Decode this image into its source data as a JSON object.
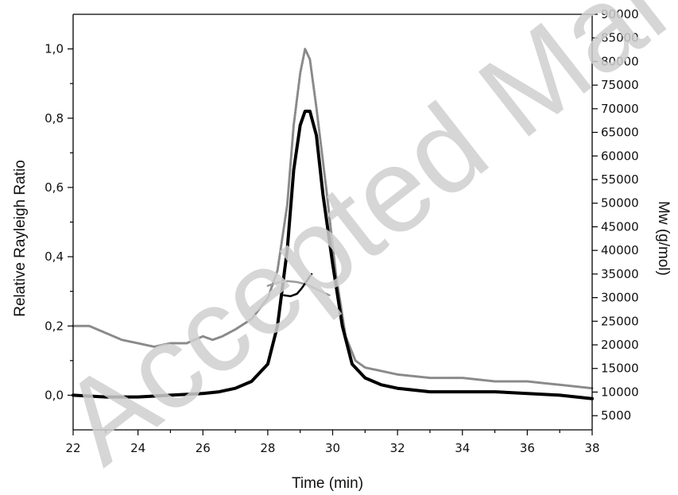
{
  "chart_data": {
    "type": "line",
    "title": "",
    "xlabel": "Time (min)",
    "ylabel": "Relative Rayleigh Ratio",
    "y2label": "Mw (g/mol)",
    "xlim": [
      22,
      38
    ],
    "ylim": [
      -0.1,
      1.1
    ],
    "y2lim": [
      2000,
      90000
    ],
    "x_ticks": [
      "22",
      "24",
      "26",
      "28",
      "30",
      "32",
      "34",
      "36",
      "38"
    ],
    "y_ticks": [
      "0,0",
      "0,2",
      "0,4",
      "0,6",
      "0,8",
      "1,0"
    ],
    "y2_ticks": [
      "5000",
      "10000",
      "15000",
      "20000",
      "25000",
      "30000",
      "35000",
      "40000",
      "45000",
      "50000",
      "55000",
      "60000",
      "65000",
      "70000",
      "75000",
      "80000",
      "85000",
      "90000"
    ],
    "grid": false,
    "legend": "none",
    "watermark": "Accepted Manuscript",
    "series": [
      {
        "axis": "left",
        "color": "#8a8a8a",
        "style": "dotted-line",
        "x": [
          22.0,
          22.5,
          23.0,
          23.5,
          24.0,
          24.5,
          25.0,
          25.5,
          26.0,
          26.3,
          26.6,
          27.0,
          27.5,
          28.0,
          28.3,
          28.6,
          28.8,
          29.0,
          29.15,
          29.3,
          29.5,
          29.8,
          30.1,
          30.4,
          30.7,
          31.0,
          31.5,
          32.0,
          33.0,
          34.0,
          35.0,
          36.0,
          37.0,
          38.0
        ],
        "y": [
          0.2,
          0.2,
          0.18,
          0.16,
          0.15,
          0.14,
          0.15,
          0.15,
          0.17,
          0.16,
          0.17,
          0.19,
          0.22,
          0.28,
          0.36,
          0.55,
          0.78,
          0.93,
          1.0,
          0.97,
          0.83,
          0.6,
          0.35,
          0.17,
          0.1,
          0.08,
          0.07,
          0.06,
          0.05,
          0.05,
          0.04,
          0.04,
          0.03,
          0.02
        ]
      },
      {
        "axis": "left",
        "color": "#000000",
        "style": "thick-line",
        "x": [
          22.0,
          23.0,
          24.0,
          25.0,
          26.0,
          26.5,
          27.0,
          27.5,
          28.0,
          28.3,
          28.6,
          28.8,
          29.0,
          29.15,
          29.3,
          29.5,
          29.7,
          30.0,
          30.3,
          30.6,
          31.0,
          31.5,
          32.0,
          33.0,
          34.0,
          35.0,
          36.0,
          37.0,
          38.0
        ],
        "y": [
          0.0,
          -0.005,
          -0.005,
          0.0,
          0.005,
          0.01,
          0.02,
          0.04,
          0.09,
          0.2,
          0.42,
          0.65,
          0.78,
          0.82,
          0.82,
          0.75,
          0.58,
          0.38,
          0.2,
          0.09,
          0.05,
          0.03,
          0.02,
          0.01,
          0.01,
          0.01,
          0.005,
          0.0,
          -0.01
        ]
      },
      {
        "axis": "right",
        "color": "#9a9a9a",
        "style": "line",
        "x": [
          28.0,
          28.3,
          28.6,
          28.9,
          29.2,
          29.5,
          29.9
        ],
        "y": [
          32500,
          33200,
          33500,
          33300,
          32800,
          31800,
          30500
        ]
      },
      {
        "axis": "right",
        "color": "#000000",
        "style": "line",
        "x": [
          28.5,
          28.7,
          28.9,
          29.05,
          29.2,
          29.35
        ],
        "y": [
          30500,
          30300,
          30800,
          32000,
          33500,
          35000
        ]
      }
    ]
  }
}
